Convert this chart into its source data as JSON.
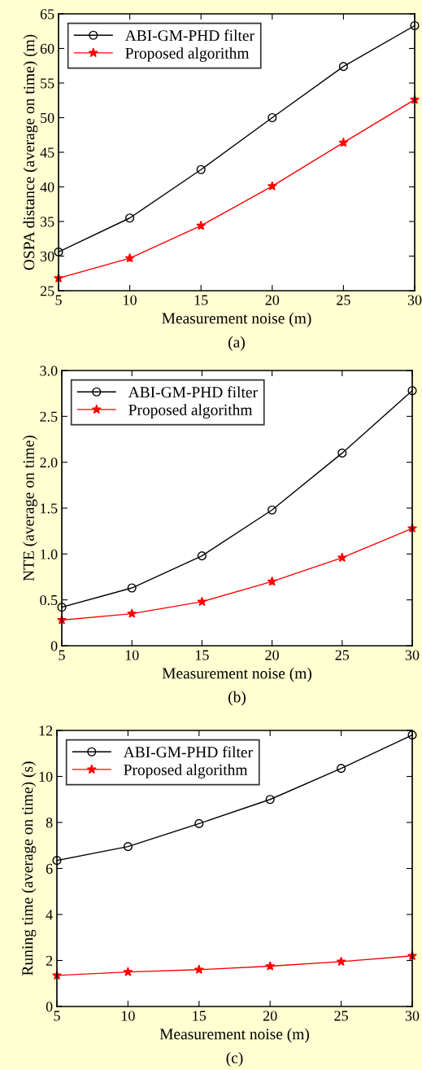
{
  "chart_data": [
    {
      "type": "line",
      "xlabel": "Measurement noise (m)",
      "ylabel": "OSPA distance (average on time) (m)",
      "x": [
        5,
        10,
        15,
        20,
        25,
        30
      ],
      "series": [
        {
          "name": "ABI-GM-PHD filter",
          "color": "#000000",
          "marker": "circle",
          "values": [
            30.6,
            35.5,
            42.5,
            50.0,
            57.4,
            63.3
          ]
        },
        {
          "name": "Proposed algorithm",
          "color": "#ff0000",
          "marker": "star",
          "values": [
            26.8,
            29.7,
            34.4,
            40.1,
            46.4,
            52.6
          ]
        }
      ],
      "xlim": [
        5,
        30
      ],
      "xticks": [
        5,
        10,
        15,
        20,
        25,
        30
      ],
      "ylim": [
        25,
        65
      ],
      "yticks": [
        25,
        30,
        35,
        40,
        45,
        50,
        55,
        60,
        65
      ],
      "grid": false,
      "legend": "top left",
      "annotations": [
        "(a)"
      ]
    },
    {
      "type": "line",
      "xlabel": "Measurement noise (m)",
      "ylabel": "NTE (average on time)",
      "x": [
        5,
        10,
        15,
        20,
        25,
        30
      ],
      "series": [
        {
          "name": "ABI-GM-PHD filter",
          "color": "#000000",
          "marker": "circle",
          "values": [
            0.42,
            0.63,
            0.98,
            1.48,
            2.1,
            2.78
          ]
        },
        {
          "name": "Proposed algorithm",
          "color": "#ff0000",
          "marker": "star",
          "values": [
            0.28,
            0.35,
            0.48,
            0.7,
            0.96,
            1.28
          ]
        }
      ],
      "xlim": [
        5,
        30
      ],
      "xticks": [
        5,
        10,
        15,
        20,
        25,
        30
      ],
      "ylim": [
        0,
        3.0
      ],
      "yticks": [
        0,
        {
          "value": 0.5,
          "label": "0.5"
        },
        {
          "value": 1.0,
          "label": "1.0"
        },
        {
          "value": 1.5,
          "label": "1.5"
        },
        {
          "value": 2.0,
          "label": "2.0"
        },
        {
          "value": 2.5,
          "label": "2.5"
        },
        {
          "value": 3.0,
          "label": "3.0"
        }
      ],
      "grid": false,
      "legend": "top left",
      "annotations": [
        "(b)"
      ]
    },
    {
      "type": "line",
      "xlabel": "Measurement noise (m)",
      "ylabel": "Runing time (average on time) (s)",
      "x": [
        5,
        10,
        15,
        20,
        25,
        30
      ],
      "series": [
        {
          "name": "ABI-GM-PHD filter",
          "color": "#000000",
          "marker": "circle",
          "values": [
            6.35,
            6.95,
            7.95,
            9.0,
            10.35,
            11.8
          ]
        },
        {
          "name": "Proposed algorithm",
          "color": "#ff0000",
          "marker": "star",
          "values": [
            1.35,
            1.5,
            1.6,
            1.75,
            1.95,
            2.2
          ]
        }
      ],
      "xlim": [
        5,
        30
      ],
      "xticks": [
        5,
        10,
        15,
        20,
        25,
        30
      ],
      "ylim": [
        0,
        12
      ],
      "yticks": [
        0,
        2,
        4,
        6,
        8,
        10,
        12
      ],
      "grid": false,
      "legend": "top left",
      "annotations": [
        "(c)"
      ]
    }
  ]
}
